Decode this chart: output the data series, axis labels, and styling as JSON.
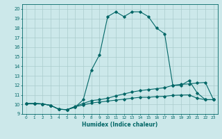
{
  "title": "",
  "xlabel": "Humidex (Indice chaleur)",
  "bg_color": "#cce8ea",
  "grid_color": "#aacccc",
  "line_color": "#006666",
  "xlim": [
    -0.5,
    23.5
  ],
  "ylim": [
    9.0,
    20.5
  ],
  "xticks": [
    0,
    1,
    2,
    3,
    4,
    5,
    6,
    7,
    8,
    9,
    10,
    11,
    12,
    13,
    14,
    15,
    16,
    17,
    18,
    19,
    20,
    21,
    22,
    23
  ],
  "yticks": [
    9,
    10,
    11,
    12,
    13,
    14,
    15,
    16,
    17,
    18,
    19,
    20
  ],
  "curve1_x": [
    0,
    1,
    2,
    3,
    4,
    5,
    6,
    7,
    8,
    9,
    10,
    11,
    12,
    13,
    14,
    15,
    16,
    17,
    18,
    19,
    20,
    21,
    22,
    23
  ],
  "curve1_y": [
    10.1,
    10.1,
    10.05,
    9.9,
    9.5,
    9.45,
    9.7,
    10.5,
    13.6,
    15.2,
    19.2,
    19.7,
    19.2,
    19.7,
    19.7,
    19.2,
    18.0,
    17.4,
    12.0,
    12.0,
    12.5,
    11.2,
    10.5,
    10.5
  ],
  "curve2_x": [
    0,
    1,
    2,
    3,
    4,
    5,
    6,
    7,
    8,
    9,
    10,
    11,
    12,
    13,
    14,
    15,
    16,
    17,
    18,
    19,
    20,
    21,
    22,
    23
  ],
  "curve2_y": [
    10.1,
    10.1,
    10.05,
    9.9,
    9.5,
    9.45,
    9.8,
    10.1,
    10.4,
    10.5,
    10.65,
    10.9,
    11.1,
    11.3,
    11.45,
    11.55,
    11.65,
    11.75,
    12.0,
    12.1,
    12.15,
    12.25,
    12.3,
    10.5
  ],
  "curve3_x": [
    0,
    1,
    2,
    3,
    4,
    5,
    6,
    7,
    8,
    9,
    10,
    11,
    12,
    13,
    14,
    15,
    16,
    17,
    18,
    19,
    20,
    21,
    22,
    23
  ],
  "curve3_y": [
    10.1,
    10.1,
    10.05,
    9.9,
    9.5,
    9.45,
    9.75,
    9.95,
    10.15,
    10.25,
    10.35,
    10.45,
    10.55,
    10.65,
    10.75,
    10.75,
    10.82,
    10.85,
    10.95,
    10.98,
    11.0,
    10.65,
    10.5,
    10.5
  ]
}
